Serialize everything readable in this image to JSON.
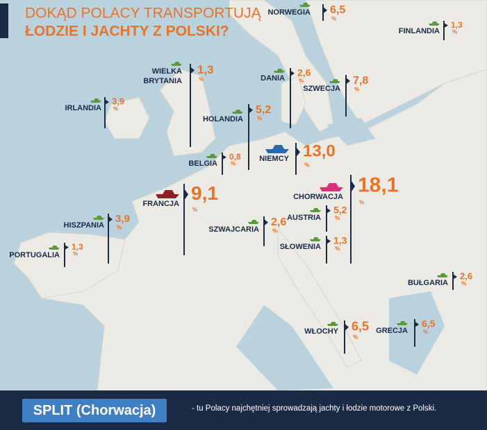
{
  "title": {
    "line1": "DOKĄD POLACY TRANSPORTUJĄ",
    "line2": "ŁODZIE I JACHTY Z POLSKI?"
  },
  "unit": "%",
  "countries": [
    {
      "name": "NORWEGIA",
      "value": "6,5"
    },
    {
      "name": "FINLANDIA",
      "value": "1,3"
    },
    {
      "name": [
        "WIELKA",
        "BRYTANIA"
      ],
      "value": "1,3"
    },
    {
      "name": "IRLANDIA",
      "value": "3,9"
    },
    {
      "name": "DANIA",
      "value": "2,6"
    },
    {
      "name": "SZWECJA",
      "value": "7,8"
    },
    {
      "name": "HOLANDIA",
      "value": "5,2"
    },
    {
      "name": "BELGIA",
      "value": "0,8"
    },
    {
      "name": "NIEMCY",
      "value": "13,0"
    },
    {
      "name": "FRANCJA",
      "value": "9,1"
    },
    {
      "name": "CHORWACJA",
      "value": "18,1"
    },
    {
      "name": "HISZPANIA",
      "value": "3,9"
    },
    {
      "name": "SZWAJCARIA",
      "value": "2,6"
    },
    {
      "name": "AUSTRIA",
      "value": "5,2"
    },
    {
      "name": "SŁOWENIA",
      "value": "1,3"
    },
    {
      "name": "PORTUGALIA",
      "value": "1,3"
    },
    {
      "name": "BUŁGARIA",
      "value": "2,6"
    },
    {
      "name": "WŁOCHY",
      "value": "6,5"
    },
    {
      "name": "GRECJA",
      "value": "6,5"
    }
  ],
  "footer": {
    "highlight": "SPLIT (Chorwacja)",
    "text": "- tu Polacy najchętniej sprowadzają jachty i łodzie motorowe z Polski."
  }
}
